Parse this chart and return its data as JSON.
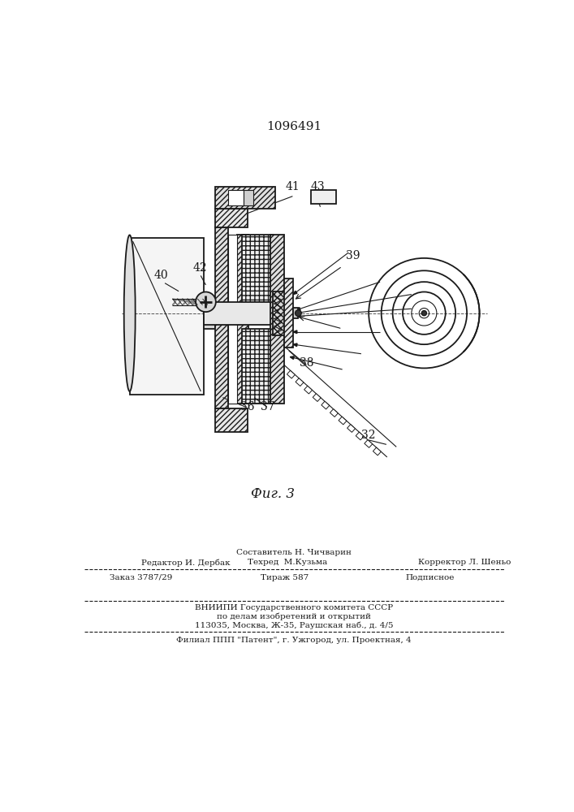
{
  "patent_number": "1096491",
  "fig_label": "Фиг. 3",
  "bg_color": "#ffffff",
  "line_color": "#1a1a1a",
  "editor_line": "Редактор И. Дербак",
  "composer_line": "Составитель Н. Чичварин",
  "techred_line": "Техред  М.Кузьма",
  "corrector_line": "Корректор Л. Шеньо",
  "order_line": "Заказ 3787/29",
  "tirazh_line": "Тираж 587",
  "podpisnoe_line": "Подписное",
  "vnipi_line": "ВНИИПИ Государственного комитета СССР",
  "affairs_line": "по делам изобретений и открытий",
  "address_line": "113035, Москва, Ж-35, Раушская наб., д. 4/5",
  "filial_line": "Филиал ППП \"Патент\", г. Ужгород, ул. Проектная, 4"
}
